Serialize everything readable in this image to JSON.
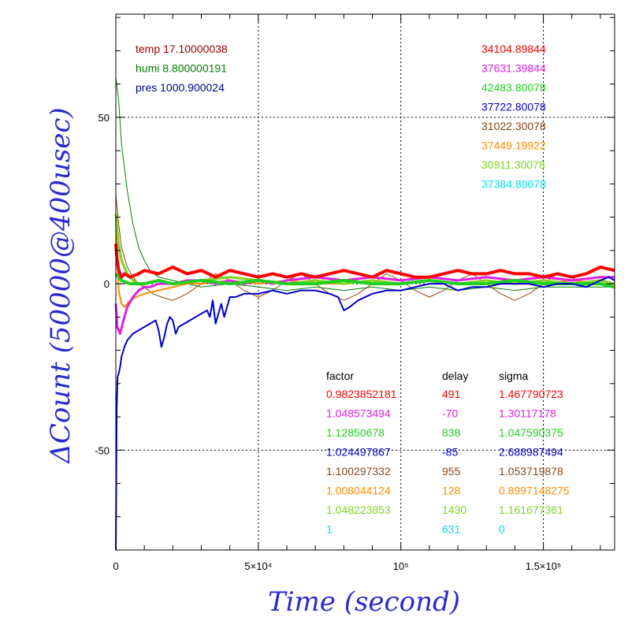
{
  "chart_data": {
    "type": "line",
    "xlabel": "Time (second)",
    "ylabel": "ΔCount (50000@400usec)",
    "xlim": [
      0,
      175000
    ],
    "ylim": [
      -80,
      81
    ],
    "grid": true,
    "x_ticks": [
      {
        "value": 0,
        "label": "0"
      },
      {
        "value": 50000,
        "label": "5×10⁴"
      },
      {
        "value": 100000,
        "label": "10⁵"
      },
      {
        "value": 150000,
        "label": "1.5×10⁵"
      }
    ],
    "y_ticks": [
      {
        "value": 50,
        "label": "50"
      },
      {
        "value": 0,
        "label": "0"
      },
      {
        "value": -50,
        "label": "-50"
      }
    ],
    "environment": [
      {
        "label": "temp 17.10000038",
        "color": "#a00000"
      },
      {
        "label": "humi 8.800000191",
        "color": "#008000"
      },
      {
        "label": "pres 1000.900024",
        "color": "#00008b"
      }
    ],
    "count_legend": [
      {
        "value": "34104.89844",
        "color": "#ff0000"
      },
      {
        "value": "37631.39844",
        "color": "#e020e0"
      },
      {
        "value": "42483.80078",
        "color": "#20d020"
      },
      {
        "value": "37722.80078",
        "color": "#0000cd"
      },
      {
        "value": "31022.30078",
        "color": "#8b4513"
      },
      {
        "value": "37449.19922",
        "color": "#ff8c00"
      },
      {
        "value": "30911.30078",
        "color": "#7fd420"
      },
      {
        "value": "37384.80078",
        "color": "#00e0f0"
      }
    ],
    "table_headers": [
      "factor",
      "delay",
      "sigma"
    ],
    "table_rows": [
      {
        "factor": "0.9823852181",
        "delay": "491",
        "sigma": "1.467790723",
        "color": "#ff0000"
      },
      {
        "factor": "1.048573494",
        "delay": "-70",
        "sigma": "1.30117178",
        "color": "#e020e0"
      },
      {
        "factor": "1.12850678",
        "delay": "838",
        "sigma": "1.047590375",
        "color": "#20d020"
      },
      {
        "factor": "1.024497867",
        "delay": "-85",
        "sigma": "2.688987494",
        "color": "#0000cd"
      },
      {
        "factor": "1.100297332",
        "delay": "955",
        "sigma": "1.053719878",
        "color": "#8b4513"
      },
      {
        "factor": "1.008044124",
        "delay": "128",
        "sigma": "0.8997148275",
        "color": "#ff8c00"
      },
      {
        "factor": "1.048223853",
        "delay": "1430",
        "sigma": "1.161677361",
        "color": "#7fd420"
      },
      {
        "factor": "1",
        "delay": "631",
        "sigma": "0",
        "color": "#00e0f0"
      }
    ],
    "series": [
      {
        "color": "#008000",
        "width": 1,
        "x": [
          0,
          1000,
          2000,
          4000,
          6000,
          8000,
          10000,
          12000,
          15000,
          20000,
          30000,
          40000,
          50000,
          60000,
          70000,
          80000,
          90000,
          100000,
          110000,
          120000,
          130000,
          140000,
          150000,
          160000,
          170000,
          175000
        ],
        "y": [
          62,
          55,
          42,
          28,
          18,
          11,
          7,
          4,
          2,
          1,
          -1,
          0,
          -1,
          -2,
          -1,
          -2,
          -1,
          -2,
          -1,
          -2,
          -1,
          -2,
          -1,
          -1,
          -1,
          -1
        ]
      },
      {
        "color": "#8b4513",
        "width": 1,
        "x": [
          0,
          1000,
          2000,
          4000,
          6000,
          8000,
          10000,
          13000,
          16000,
          20000,
          25000,
          30000,
          35000,
          40000,
          45000,
          50000,
          55000,
          60000,
          65000,
          70000,
          75000,
          80000,
          85000,
          90000,
          95000,
          100000,
          105000,
          110000,
          115000,
          120000,
          125000,
          130000,
          135000,
          140000,
          145000,
          150000,
          155000,
          160000,
          165000,
          170000,
          175000
        ],
        "y": [
          27,
          18,
          11,
          5,
          2,
          0,
          -1,
          -3,
          -4,
          -5,
          -3,
          0,
          3,
          1,
          -2,
          -4,
          -2,
          1,
          3,
          0,
          -3,
          -5,
          -3,
          0,
          3,
          1,
          -2,
          -4,
          -2,
          1,
          3,
          0,
          -3,
          -5,
          -3,
          0,
          3,
          2,
          -1,
          1,
          0
        ]
      },
      {
        "color": "#ff8c00",
        "width": 2,
        "x": [
          0,
          500,
          1000,
          2000,
          3000,
          4000,
          5000,
          7000,
          10000,
          15000,
          20000,
          25000,
          30000,
          40000,
          50000,
          60000,
          70000,
          80000,
          90000,
          100000,
          110000,
          120000,
          130000,
          140000,
          150000,
          160000,
          170000,
          175000
        ],
        "y": [
          20,
          10,
          -2,
          -6,
          -7,
          -6,
          -5,
          -4,
          -3,
          -2,
          -1,
          0,
          0,
          1,
          0,
          1,
          0,
          0,
          1,
          0,
          1,
          0,
          1,
          0,
          0,
          1,
          0,
          0
        ]
      },
      {
        "color": "#7fd420",
        "width": 3,
        "x": [
          0,
          1000,
          2000,
          4000,
          6000,
          8000,
          10000,
          15000,
          20000,
          30000,
          40000,
          50000,
          60000,
          70000,
          80000,
          90000,
          100000,
          110000,
          120000,
          130000,
          140000,
          150000,
          160000,
          170000,
          175000
        ],
        "y": [
          21,
          12,
          7,
          3,
          1,
          0,
          0,
          1,
          0,
          1,
          2,
          1,
          0,
          1,
          0,
          1,
          0,
          1,
          0,
          1,
          0,
          1,
          0,
          1,
          0
        ]
      },
      {
        "color": "#e020e0",
        "width": 3,
        "x": [
          0,
          500,
          1500,
          3000,
          4000,
          6000,
          8000,
          10000,
          12000,
          15000,
          20000,
          25000,
          30000,
          35000,
          40000,
          45000,
          50000,
          55000,
          60000,
          70000,
          80000,
          90000,
          100000,
          110000,
          120000,
          130000,
          140000,
          150000,
          160000,
          170000,
          175000
        ],
        "y": [
          -6,
          -13,
          -15,
          -10,
          -7,
          -4,
          -2,
          -1,
          -1,
          0,
          0,
          1,
          1,
          0,
          1,
          0,
          1,
          0,
          1,
          2,
          1,
          2,
          1,
          2,
          1,
          2,
          1,
          2,
          1,
          2,
          2
        ]
      },
      {
        "color": "#20d020",
        "width": 4,
        "x": [
          0,
          2000,
          5000,
          10000,
          15000,
          20000,
          30000,
          40000,
          50000,
          60000,
          70000,
          80000,
          90000,
          100000,
          110000,
          120000,
          130000,
          140000,
          150000,
          160000,
          170000,
          175000
        ],
        "y": [
          3,
          1,
          0,
          0,
          1,
          0,
          1,
          0,
          1,
          0,
          0,
          1,
          0,
          0,
          1,
          0,
          0,
          1,
          0,
          0,
          0,
          -1
        ]
      },
      {
        "color": "#0000cd",
        "width": 2,
        "x": [
          0,
          300,
          600,
          1000,
          1500,
          2000,
          3000,
          4000,
          5000,
          6000,
          8000,
          10000,
          12000,
          14000,
          15000,
          16000,
          17000,
          18000,
          19000,
          20000,
          21000,
          22000,
          24000,
          26000,
          28000,
          30000,
          32000,
          33000,
          34000,
          35000,
          36000,
          37000,
          38000,
          40000,
          42000,
          45000,
          50000,
          55000,
          60000,
          65000,
          70000,
          75000,
          78000,
          80000,
          82000,
          85000,
          90000,
          95000,
          100000,
          105000,
          110000,
          115000,
          120000,
          125000,
          130000,
          135000,
          140000,
          145000,
          150000,
          155000,
          160000,
          165000,
          170000,
          173000,
          175000
        ],
        "y": [
          -80,
          -38,
          -28,
          -27,
          -25,
          -22,
          -19,
          -17,
          -16,
          -15,
          -14,
          -13,
          -12,
          -11,
          -14,
          -19,
          -16,
          -12,
          -10,
          -11,
          -15,
          -13,
          -12,
          -11,
          -10,
          -9,
          -8,
          -10,
          -5,
          -12,
          -9,
          -6,
          -10,
          -4,
          -4,
          -3,
          -3,
          -2,
          -3,
          -2,
          -2,
          -3,
          -4,
          -8,
          -7,
          -5,
          -3,
          -2,
          -2,
          -1,
          0,
          0,
          -2,
          -1,
          -1,
          0,
          0,
          0,
          -1,
          0,
          0,
          -1,
          1,
          2,
          1
        ]
      },
      {
        "color": "#ff0000",
        "width": 4,
        "x": [
          0,
          500,
          1000,
          2000,
          3000,
          5000,
          8000,
          10000,
          15000,
          20000,
          25000,
          30000,
          35000,
          40000,
          45000,
          50000,
          55000,
          60000,
          65000,
          70000,
          75000,
          80000,
          85000,
          90000,
          95000,
          100000,
          105000,
          110000,
          115000,
          120000,
          125000,
          130000,
          135000,
          140000,
          145000,
          150000,
          155000,
          160000,
          165000,
          170000,
          175000
        ],
        "y": [
          12,
          7,
          4,
          2,
          3,
          2,
          3,
          4,
          3,
          5,
          3,
          4,
          2,
          4,
          3,
          2,
          3,
          2,
          3,
          2,
          3,
          4,
          3,
          2,
          4,
          3,
          2,
          2,
          3,
          4,
          3,
          3,
          4,
          3,
          3,
          2,
          3,
          2,
          3,
          5,
          4
        ]
      }
    ]
  }
}
